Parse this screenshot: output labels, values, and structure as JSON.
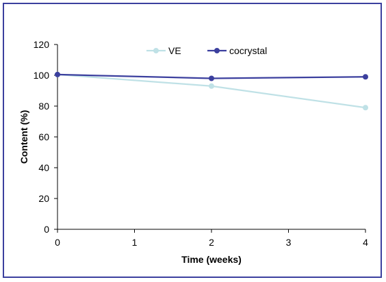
{
  "chart_data": {
    "type": "line",
    "title": "",
    "xlabel": "Time (weeks)",
    "ylabel": "Content (%)",
    "xlim": [
      0,
      4
    ],
    "ylim": [
      0,
      120
    ],
    "x_ticks": [
      "0",
      "1",
      "2",
      "3",
      "4"
    ],
    "y_ticks": [
      "0",
      "20",
      "40",
      "60",
      "80",
      "100",
      "120"
    ],
    "grid": false,
    "legend_position": "top-center",
    "series": [
      {
        "name": "VE",
        "color": "#bfe1e6",
        "x": [
          0,
          2,
          4
        ],
        "y": [
          100.5,
          93,
          79
        ]
      },
      {
        "name": "cocrystal",
        "color": "#3b3f9e",
        "x": [
          0,
          2,
          4
        ],
        "y": [
          100.5,
          98,
          99
        ]
      }
    ]
  }
}
